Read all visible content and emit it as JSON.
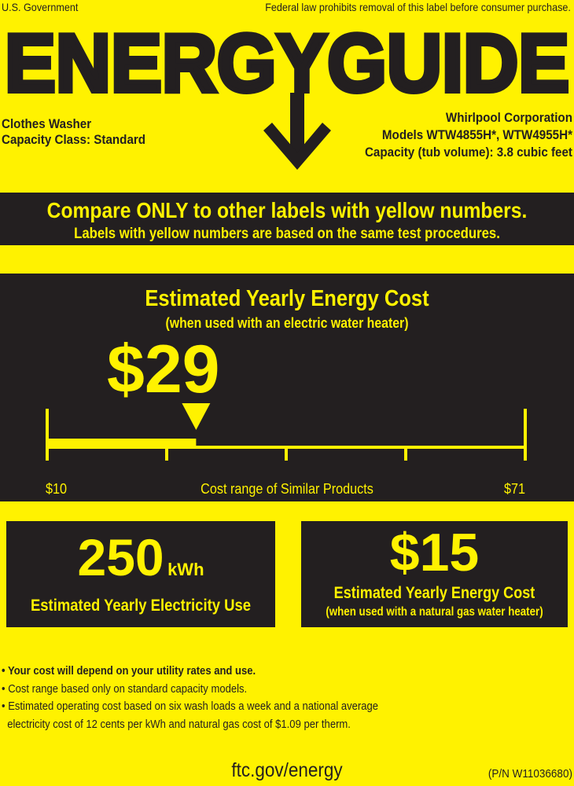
{
  "header": {
    "left_note": "U.S. Government",
    "right_note": "Federal law prohibits removal of this label before consumer purchase.",
    "logo_text": "ENERGYGUIDE"
  },
  "product": {
    "type": "Clothes Washer",
    "capacity_class": "Capacity Class: Standard",
    "manufacturer": "Whirlpool Corporation",
    "models": "Models WTW4855H*, WTW4955H*",
    "capacity": "Capacity (tub volume): 3.8 cubic feet"
  },
  "compare": {
    "headline": "Compare ONLY to other labels with yellow numbers.",
    "subline": "Labels with yellow numbers are based on the same test procedures."
  },
  "electric_cost": {
    "title": "Estimated Yearly Energy Cost",
    "subtitle": "(when used with an electric water heater)",
    "value": "$29",
    "value_number": 29,
    "range_min": 10,
    "range_max": 71,
    "range_min_label": "$10",
    "range_max_label": "$71",
    "range_caption": "Cost range of Similar Products"
  },
  "electricity_use": {
    "value": "250",
    "unit": "kWh",
    "label": "Estimated Yearly Electricity Use"
  },
  "gas_cost": {
    "value": "$15",
    "title": "Estimated Yearly Energy Cost",
    "subtitle": "(when used with a natural gas water heater)"
  },
  "footnotes": [
    "• Your cost will depend on your utility rates and use.",
    "• Cost range based only on standard capacity models.",
    "• Estimated operating cost based on six wash loads a week and a national average",
    "  electricity cost of 12 cents per kWh and natural gas cost of $1.09 per therm."
  ],
  "footer": {
    "url": "ftc.gov/energy",
    "part_number": "(P/N W11036680)"
  },
  "colors": {
    "yellow": "#fff200",
    "dark": "#231f20"
  }
}
